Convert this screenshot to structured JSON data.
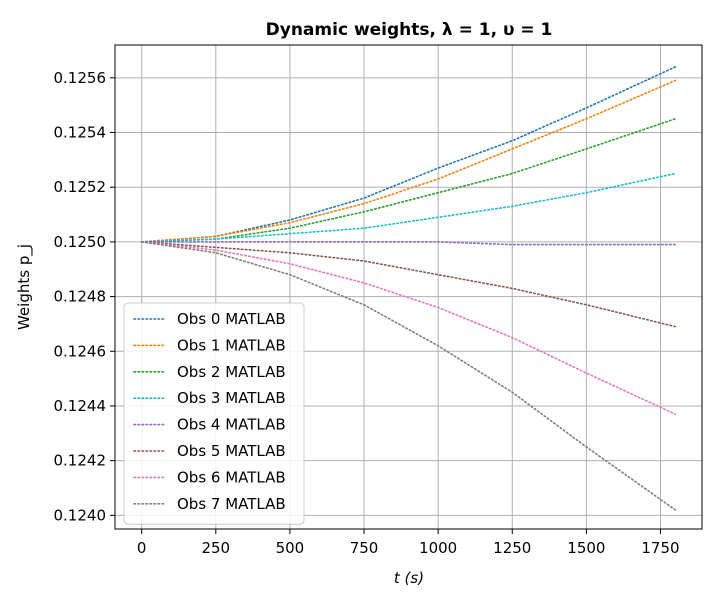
{
  "chart_data": {
    "type": "line",
    "title": "Dynamic weights, λ = 1, υ = 1",
    "xlabel": "t (s)",
    "ylabel": "Weights p_j",
    "xlim": [
      -90,
      1890
    ],
    "ylim": [
      0.12395,
      0.12572
    ],
    "xticks": [
      0,
      250,
      500,
      750,
      1000,
      1250,
      1500,
      1750
    ],
    "yticks": [
      0.124,
      0.1242,
      0.1244,
      0.1246,
      0.1248,
      0.125,
      0.1252,
      0.1254,
      0.1256
    ],
    "ytick_labels": [
      "0.1240",
      "0.1242",
      "0.1244",
      "0.1246",
      "0.1248",
      "0.1250",
      "0.1252",
      "0.1254",
      "0.1256"
    ],
    "grid": true,
    "legend_position": "lower-left",
    "x": [
      0,
      250,
      500,
      750,
      1000,
      1250,
      1500,
      1800
    ],
    "series": [
      {
        "name": "Obs 0 MATLAB",
        "color": "#1f77b4",
        "values": [
          0.125,
          0.12502,
          0.12508,
          0.12516,
          0.12527,
          0.12537,
          0.12549,
          0.12564
        ]
      },
      {
        "name": "Obs 1 MATLAB",
        "color": "#ff7f0e",
        "values": [
          0.125,
          0.12502,
          0.12507,
          0.12514,
          0.12523,
          0.12534,
          0.12545,
          0.12559
        ]
      },
      {
        "name": "Obs 2 MATLAB",
        "color": "#2ca02c",
        "values": [
          0.125,
          0.12501,
          0.12505,
          0.12511,
          0.12518,
          0.12525,
          0.12534,
          0.12545
        ]
      },
      {
        "name": "Obs 3 MATLAB",
        "color": "#17becf",
        "values": [
          0.125,
          0.12501,
          0.12503,
          0.12505,
          0.12509,
          0.12513,
          0.12518,
          0.12525
        ]
      },
      {
        "name": "Obs 4 MATLAB",
        "color": "#9467bd",
        "values": [
          0.125,
          0.125,
          0.125,
          0.125,
          0.125,
          0.12499,
          0.12499,
          0.12499
        ]
      },
      {
        "name": "Obs 5 MATLAB",
        "color": "#8c564b",
        "values": [
          0.125,
          0.12498,
          0.12496,
          0.12493,
          0.12488,
          0.12483,
          0.12477,
          0.12469
        ]
      },
      {
        "name": "Obs 6 MATLAB",
        "color": "#e377c2",
        "values": [
          0.125,
          0.12497,
          0.12492,
          0.12485,
          0.12476,
          0.12465,
          0.12452,
          0.12437
        ]
      },
      {
        "name": "Obs 7 MATLAB",
        "color": "#7f7f7f",
        "values": [
          0.125,
          0.12496,
          0.12488,
          0.12477,
          0.12462,
          0.12445,
          0.12425,
          0.12402
        ]
      }
    ]
  }
}
